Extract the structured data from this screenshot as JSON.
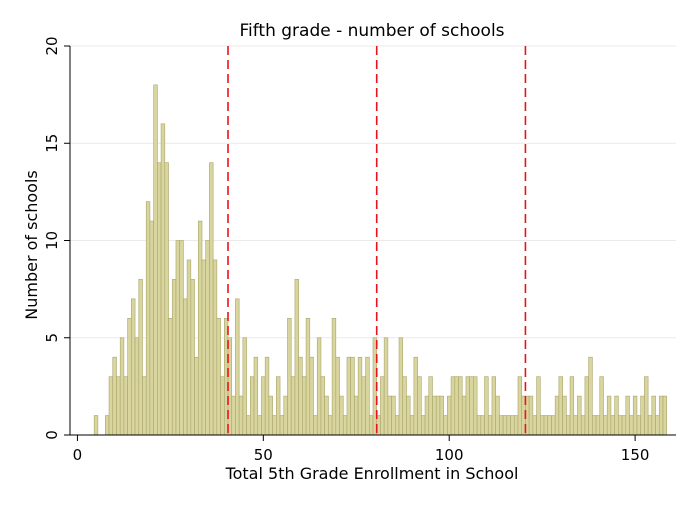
{
  "chart_data": {
    "type": "bar",
    "title": "Fifth grade - number of schools",
    "xlabel": "Total 5th Grade Enrollment in School",
    "ylabel": "Number of schools",
    "xlim": [
      -2,
      161
    ],
    "ylim": [
      0,
      20
    ],
    "xticks": [
      0,
      50,
      100,
      150
    ],
    "yticks": [
      0,
      5,
      10,
      15,
      20
    ],
    "grid": true,
    "bar_color": "#d9d59e",
    "bar_edge_color": "#a9a56a",
    "reference_line_color": "#e8141b",
    "reference_lines_x": [
      40.5,
      80.5,
      120.5
    ],
    "bins": {
      "x": [
        5,
        6,
        7,
        8,
        9,
        10,
        11,
        12,
        13,
        14,
        15,
        16,
        17,
        18,
        19,
        20,
        21,
        22,
        23,
        24,
        25,
        26,
        27,
        28,
        29,
        30,
        31,
        32,
        33,
        34,
        35,
        36,
        37,
        38,
        39,
        40,
        41,
        42,
        43,
        44,
        45,
        46,
        47,
        48,
        49,
        50,
        51,
        52,
        53,
        54,
        55,
        56,
        57,
        58,
        59,
        60,
        61,
        62,
        63,
        64,
        65,
        66,
        67,
        68,
        69,
        70,
        71,
        72,
        73,
        74,
        75,
        76,
        77,
        78,
        79,
        80,
        81,
        82,
        83,
        84,
        85,
        86,
        87,
        88,
        89,
        90,
        91,
        92,
        93,
        94,
        95,
        96,
        97,
        98,
        99,
        100,
        101,
        102,
        103,
        104,
        105,
        106,
        107,
        108,
        109,
        110,
        111,
        112,
        113,
        114,
        115,
        116,
        117,
        118,
        119,
        120,
        121,
        122,
        123,
        124,
        125,
        126,
        127,
        128,
        129,
        130,
        131,
        132,
        133,
        134,
        135,
        136,
        137,
        138,
        139,
        140,
        141,
        142,
        143,
        144,
        145,
        146,
        147,
        148,
        149,
        150,
        151,
        152,
        153,
        154,
        155,
        156,
        157,
        158
      ],
      "counts": [
        1,
        0,
        0,
        1,
        3,
        4,
        3,
        5,
        3,
        6,
        7,
        5,
        8,
        3,
        12,
        11,
        18,
        14,
        16,
        14,
        6,
        8,
        10,
        10,
        7,
        9,
        8,
        4,
        11,
        9,
        10,
        14,
        9,
        6,
        3,
        6,
        5,
        2,
        7,
        2,
        5,
        1,
        3,
        4,
        1,
        3,
        4,
        2,
        1,
        3,
        1,
        2,
        6,
        3,
        8,
        4,
        3,
        6,
        4,
        1,
        5,
        3,
        2,
        1,
        6,
        4,
        2,
        1,
        4,
        4,
        2,
        4,
        3,
        4,
        1,
        5,
        1,
        3,
        5,
        2,
        2,
        1,
        5,
        3,
        2,
        1,
        4,
        3,
        1,
        2,
        3,
        2,
        2,
        2,
        1,
        2,
        3,
        3,
        3,
        2,
        3,
        3,
        3,
        1,
        1,
        3,
        1,
        3,
        2,
        1,
        1,
        1,
        1,
        1,
        3,
        2,
        2,
        2,
        1,
        3,
        1,
        1,
        1,
        1,
        2,
        3,
        2,
        1,
        3,
        1,
        2,
        1,
        3,
        4,
        1,
        1,
        3,
        1,
        2,
        1,
        2,
        1,
        1,
        2,
        1,
        2,
        1,
        2,
        3,
        1,
        2,
        1,
        2,
        2
      ]
    }
  }
}
